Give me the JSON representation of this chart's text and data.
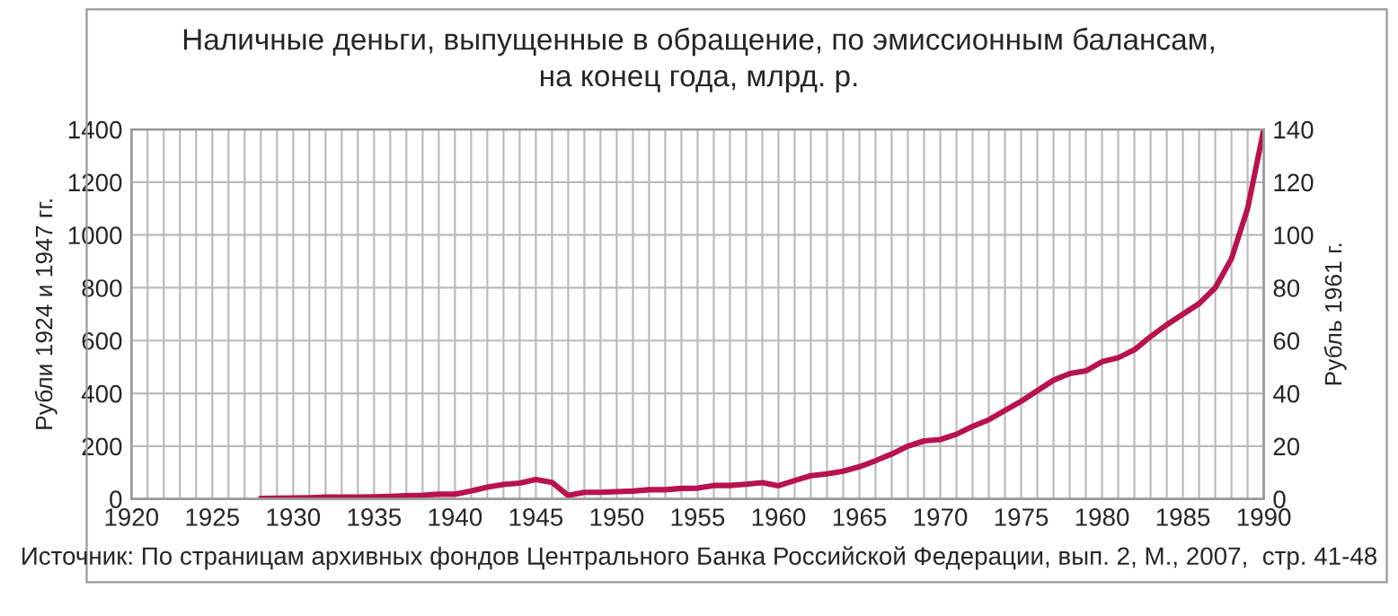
{
  "chart_data": {
    "type": "line",
    "title": "Наличные деньги, выпущенные в обращение, по эмиссионным балансам,\nна конец года, млрд. р.",
    "ylabel": "Рубли 1924 и 1947 гг.",
    "y2label": "Рубль 1961 г.",
    "annotations": [
      "Источник: По страницам архивных фондов Центрального Банка Российской Федерации, вып. 2, М., 2007,  стр. 41-48"
    ],
    "x": [
      1928,
      1929,
      1930,
      1931,
      1932,
      1933,
      1934,
      1935,
      1936,
      1937,
      1938,
      1939,
      1940,
      1941,
      1942,
      1943,
      1944,
      1945,
      1946,
      1947,
      1948,
      1949,
      1950,
      1951,
      1952,
      1953,
      1954,
      1955,
      1956,
      1957,
      1958,
      1959,
      1960,
      1961,
      1962,
      1963,
      1964,
      1965,
      1966,
      1967,
      1968,
      1969,
      1970,
      1971,
      1972,
      1973,
      1974,
      1975,
      1976,
      1977,
      1978,
      1979,
      1980,
      1981,
      1982,
      1983,
      1984,
      1985,
      1986,
      1987,
      1988,
      1989,
      1990
    ],
    "series": [
      {
        "color": "#b8124f",
        "values": [
          2,
          3,
          4,
          5,
          7,
          7,
          7,
          8,
          10,
          12,
          14,
          18,
          18,
          30,
          45,
          55,
          60,
          74,
          63,
          13,
          25,
          25,
          28,
          30,
          35,
          35,
          40,
          41,
          51,
          51,
          56,
          62,
          50,
          70,
          88,
          95,
          105,
          122,
          145,
          170,
          200,
          220,
          225,
          245,
          275,
          300,
          335,
          370,
          410,
          450,
          475,
          485,
          520,
          535,
          565,
          615,
          660,
          700,
          740,
          800,
          910,
          1100,
          1400
        ]
      }
    ],
    "xlim": [
      1920,
      1990
    ],
    "xticks": [
      1920,
      {
        "value": 1921,
        "label": null
      },
      {
        "value": 1922,
        "label": null
      },
      {
        "value": 1923,
        "label": null
      },
      {
        "value": 1924,
        "label": null
      },
      1925,
      {
        "value": 1926,
        "label": null
      },
      {
        "value": 1927,
        "label": null
      },
      {
        "value": 1928,
        "label": null
      },
      {
        "value": 1929,
        "label": null
      },
      1930,
      {
        "value": 1931,
        "label": null
      },
      {
        "value": 1932,
        "label": null
      },
      {
        "value": 1933,
        "label": null
      },
      {
        "value": 1934,
        "label": null
      },
      1935,
      {
        "value": 1936,
        "label": null
      },
      {
        "value": 1937,
        "label": null
      },
      {
        "value": 1938,
        "label": null
      },
      {
        "value": 1939,
        "label": null
      },
      1940,
      {
        "value": 1941,
        "label": null
      },
      {
        "value": 1942,
        "label": null
      },
      {
        "value": 1943,
        "label": null
      },
      {
        "value": 1944,
        "label": null
      },
      1945,
      {
        "value": 1946,
        "label": null
      },
      {
        "value": 1947,
        "label": null
      },
      {
        "value": 1948,
        "label": null
      },
      {
        "value": 1949,
        "label": null
      },
      1950,
      {
        "value": 1951,
        "label": null
      },
      {
        "value": 1952,
        "label": null
      },
      {
        "value": 1953,
        "label": null
      },
      {
        "value": 1954,
        "label": null
      },
      1955,
      {
        "value": 1956,
        "label": null
      },
      {
        "value": 1957,
        "label": null
      },
      {
        "value": 1958,
        "label": null
      },
      {
        "value": 1959,
        "label": null
      },
      1960,
      {
        "value": 1961,
        "label": null
      },
      {
        "value": 1962,
        "label": null
      },
      {
        "value": 1963,
        "label": null
      },
      {
        "value": 1964,
        "label": null
      },
      1965,
      {
        "value": 1966,
        "label": null
      },
      {
        "value": 1967,
        "label": null
      },
      {
        "value": 1968,
        "label": null
      },
      {
        "value": 1969,
        "label": null
      },
      1970,
      {
        "value": 1971,
        "label": null
      },
      {
        "value": 1972,
        "label": null
      },
      {
        "value": 1973,
        "label": null
      },
      {
        "value": 1974,
        "label": null
      },
      1975,
      {
        "value": 1976,
        "label": null
      },
      {
        "value": 1977,
        "label": null
      },
      {
        "value": 1978,
        "label": null
      },
      {
        "value": 1979,
        "label": null
      },
      1980,
      {
        "value": 1981,
        "label": null
      },
      {
        "value": 1982,
        "label": null
      },
      {
        "value": 1983,
        "label": null
      },
      {
        "value": 1984,
        "label": null
      },
      1985,
      {
        "value": 1986,
        "label": null
      },
      {
        "value": 1987,
        "label": null
      },
      {
        "value": 1988,
        "label": null
      },
      {
        "value": 1989,
        "label": null
      },
      1990
    ],
    "ylim": [
      0,
      1400
    ],
    "yticks": [
      0,
      200,
      400,
      600,
      800,
      1000,
      1200,
      1400
    ],
    "y2lim": [
      0,
      140
    ],
    "y2ticks": [
      0,
      20,
      40,
      60,
      80,
      100,
      120,
      140
    ],
    "grid": true,
    "legend": false,
    "marker": "none",
    "line_style": "solid"
  }
}
